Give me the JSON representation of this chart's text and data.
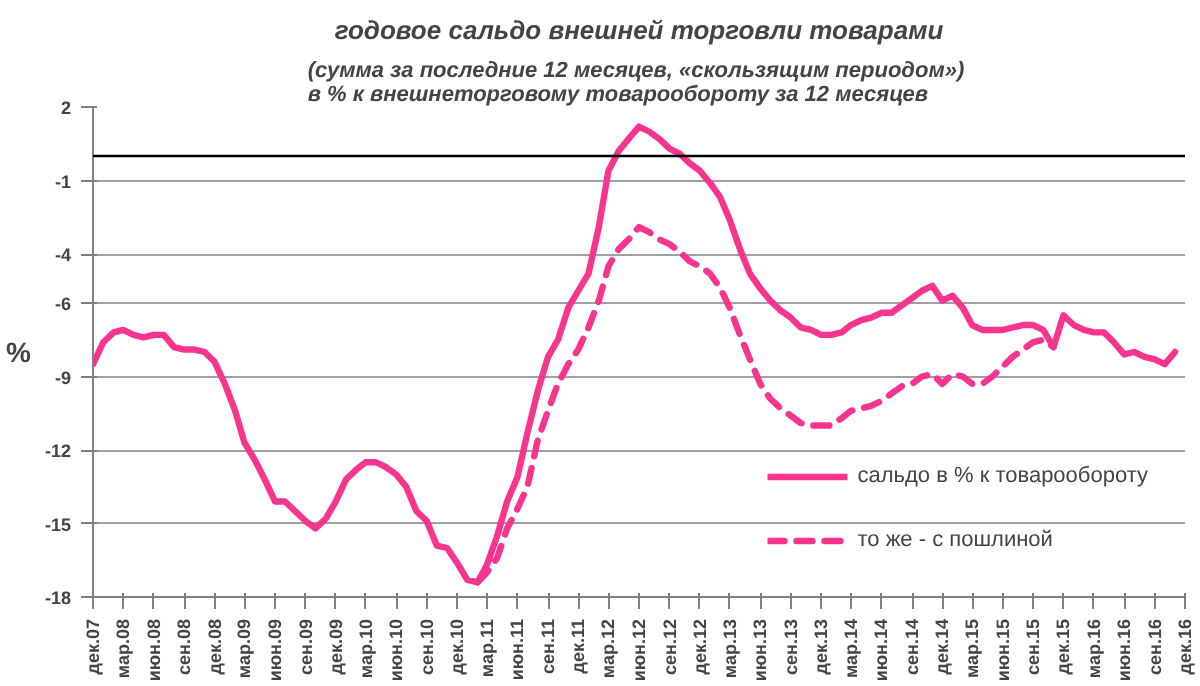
{
  "chart_data": {
    "type": "line",
    "title": "годовое сальдо внешней торговли товарами",
    "subtitle": "(сумма за последние 12  месяцев, «скользящим периодом»)\nв % к внешнеторговому товарообороту за 12 месяцев",
    "ylabel": "%",
    "x": [
      "2007-12",
      "2008-01",
      "2008-02",
      "2008-03",
      "2008-04",
      "2008-05",
      "2008-06",
      "2008-07",
      "2008-08",
      "2008-09",
      "2008-10",
      "2008-11",
      "2008-12",
      "2009-01",
      "2009-02",
      "2009-03",
      "2009-04",
      "2009-05",
      "2009-06",
      "2009-07",
      "2009-08",
      "2009-09",
      "2009-10",
      "2009-11",
      "2009-12",
      "2010-01",
      "2010-02",
      "2010-03",
      "2010-04",
      "2010-05",
      "2010-06",
      "2010-07",
      "2010-08",
      "2010-09",
      "2010-10",
      "2010-11",
      "2010-12",
      "2011-01",
      "2011-02",
      "2011-03",
      "2011-04",
      "2011-05",
      "2011-06",
      "2011-07",
      "2011-08",
      "2011-09",
      "2011-10",
      "2011-11",
      "2011-12",
      "2012-01",
      "2012-02",
      "2012-03",
      "2012-04",
      "2012-05",
      "2012-06",
      "2012-07",
      "2012-08",
      "2012-09",
      "2012-10",
      "2012-11",
      "2012-12",
      "2013-01",
      "2013-02",
      "2013-03",
      "2013-04",
      "2013-05",
      "2013-06",
      "2013-07",
      "2013-08",
      "2013-09",
      "2013-10",
      "2013-11",
      "2013-12",
      "2014-01",
      "2014-02",
      "2014-03",
      "2014-04",
      "2014-05",
      "2014-06",
      "2014-07",
      "2014-08",
      "2014-09",
      "2014-10",
      "2014-11",
      "2014-12",
      "2015-01",
      "2015-02",
      "2015-03",
      "2015-04",
      "2015-05",
      "2015-06",
      "2015-07",
      "2015-08",
      "2015-09",
      "2015-10",
      "2015-11",
      "2015-12",
      "2016-01",
      "2016-02",
      "2016-03",
      "2016-04",
      "2016-05",
      "2016-06",
      "2016-07",
      "2016-08",
      "2016-09",
      "2016-10",
      "2016-11"
    ],
    "series": [
      {
        "name": "сальдо в % к товарообороту",
        "color": "#f7358f",
        "line_style": "solid",
        "values": [
          -8.5,
          -7.6,
          -7.2,
          -7.1,
          -7.3,
          -7.4,
          -7.3,
          -7.3,
          -7.8,
          -7.9,
          -7.9,
          -8.0,
          -8.4,
          -9.3,
          -10.4,
          -11.7,
          -12.4,
          -13.2,
          -14.1,
          -14.1,
          -14.5,
          -14.9,
          -15.2,
          -14.8,
          -14.1,
          -13.2,
          -12.8,
          -12.5,
          -12.5,
          -12.7,
          -13.0,
          -13.5,
          -14.5,
          -14.9,
          -15.9,
          -16.0,
          -16.6,
          -17.3,
          -17.4,
          -16.7,
          -15.5,
          -14.1,
          -13.1,
          -11.3,
          -9.6,
          -8.2,
          -7.5,
          -6.2,
          -5.5,
          -4.8,
          -2.9,
          -0.6,
          0.2,
          0.7,
          1.2,
          1.0,
          0.7,
          0.3,
          0.1,
          -0.3,
          -0.6,
          -1.1,
          -1.7,
          -2.6,
          -3.8,
          -4.8,
          -5.4,
          -5.9,
          -6.3,
          -6.6,
          -7.0,
          -7.1,
          -7.3,
          -7.3,
          -7.2,
          -6.9,
          -6.7,
          -6.6,
          -6.4,
          -6.4,
          -6.1,
          -5.8,
          -5.5,
          -5.3,
          -5.9,
          -5.7,
          -6.2,
          -6.9,
          -7.1,
          -7.1,
          -7.1,
          -7.0,
          -6.9,
          -6.9,
          -7.1,
          -7.8,
          -6.5,
          -6.9,
          -7.1,
          -7.2,
          -7.2,
          -7.6,
          -8.1,
          -8.0,
          -8.2,
          -8.3,
          -8.5,
          -8.0
        ]
      },
      {
        "name": "то же - с пошлиной",
        "color": "#f7358f",
        "line_style": "dashed",
        "values": [
          null,
          null,
          null,
          null,
          null,
          null,
          null,
          null,
          null,
          null,
          null,
          null,
          null,
          null,
          null,
          null,
          null,
          null,
          null,
          null,
          null,
          null,
          null,
          null,
          null,
          null,
          null,
          null,
          null,
          null,
          null,
          null,
          null,
          null,
          null,
          null,
          null,
          null,
          -17.4,
          -17.0,
          -16.4,
          -15.2,
          -14.4,
          -13.5,
          -11.6,
          -10.4,
          -9.3,
          -8.5,
          -7.9,
          -7.0,
          -5.9,
          -4.5,
          -3.8,
          -3.4,
          -2.9,
          -3.1,
          -3.4,
          -3.6,
          -3.9,
          -4.3,
          -4.5,
          -4.8,
          -5.4,
          -6.2,
          -7.3,
          -8.3,
          -9.3,
          -9.9,
          -10.3,
          -10.6,
          -10.9,
          -11.0,
          -11.0,
          -11.0,
          -10.7,
          -10.4,
          -10.3,
          -10.2,
          -10.0,
          -9.7,
          -9.4,
          -9.3,
          -9.0,
          -8.9,
          -9.3,
          -8.9,
          -9.0,
          -9.3,
          -9.3,
          -9.0,
          -8.6,
          -8.2,
          -7.9,
          -7.6,
          -7.5,
          -7.8,
          null,
          null,
          null,
          null,
          null,
          null,
          null,
          null,
          null,
          null,
          null,
          null
        ]
      }
    ],
    "xlim": [
      "2007-12",
      "2016-12"
    ],
    "xticks": [
      {
        "value": "2007-12",
        "label": "дек.07"
      },
      {
        "value": "2008-03",
        "label": "мар.08"
      },
      {
        "value": "2008-06",
        "label": "июн.08"
      },
      {
        "value": "2008-09",
        "label": "сен.08"
      },
      {
        "value": "2008-12",
        "label": "дек.08"
      },
      {
        "value": "2009-03",
        "label": "мар.09"
      },
      {
        "value": "2009-06",
        "label": "июн.09"
      },
      {
        "value": "2009-09",
        "label": "сен.09"
      },
      {
        "value": "2009-12",
        "label": "дек.09"
      },
      {
        "value": "2010-03",
        "label": "мар.10"
      },
      {
        "value": "2010-06",
        "label": "июн.10"
      },
      {
        "value": "2010-09",
        "label": "сен.10"
      },
      {
        "value": "2010-12",
        "label": "дек.10"
      },
      {
        "value": "2011-03",
        "label": "мар.11"
      },
      {
        "value": "2011-06",
        "label": "июн.11"
      },
      {
        "value": "2011-09",
        "label": "сен.11"
      },
      {
        "value": "2011-12",
        "label": "дек.11"
      },
      {
        "value": "2012-03",
        "label": "мар.12"
      },
      {
        "value": "2012-06",
        "label": "июн.12"
      },
      {
        "value": "2012-09",
        "label": "сен.12"
      },
      {
        "value": "2012-12",
        "label": "дек.12"
      },
      {
        "value": "2013-03",
        "label": "мар.13"
      },
      {
        "value": "2013-06",
        "label": "июн.13"
      },
      {
        "value": "2013-09",
        "label": "сен.13"
      },
      {
        "value": "2013-12",
        "label": "дек.13"
      },
      {
        "value": "2014-03",
        "label": "мар.14"
      },
      {
        "value": "2014-06",
        "label": "июн.14"
      },
      {
        "value": "2014-09",
        "label": "сен.14"
      },
      {
        "value": "2014-12",
        "label": "дек.14"
      },
      {
        "value": "2015-03",
        "label": "мар.15"
      },
      {
        "value": "2015-06",
        "label": "июн.15"
      },
      {
        "value": "2015-09",
        "label": "сен.15"
      },
      {
        "value": "2015-12",
        "label": "дек.15"
      },
      {
        "value": "2016-03",
        "label": "мар.16"
      },
      {
        "value": "2016-06",
        "label": "июн.16"
      },
      {
        "value": "2016-09",
        "label": "сен.16"
      },
      {
        "value": "2016-12",
        "label": "дек.16"
      }
    ],
    "ylim": [
      -18,
      2
    ],
    "yticks": [
      2,
      -1,
      -4,
      -6,
      -9,
      -12,
      -15,
      -18
    ],
    "ref_lines": [
      {
        "axis": "y",
        "value": 0,
        "color": "#000000"
      }
    ],
    "grid": "y",
    "legend": "bottom right",
    "marker": "none"
  }
}
